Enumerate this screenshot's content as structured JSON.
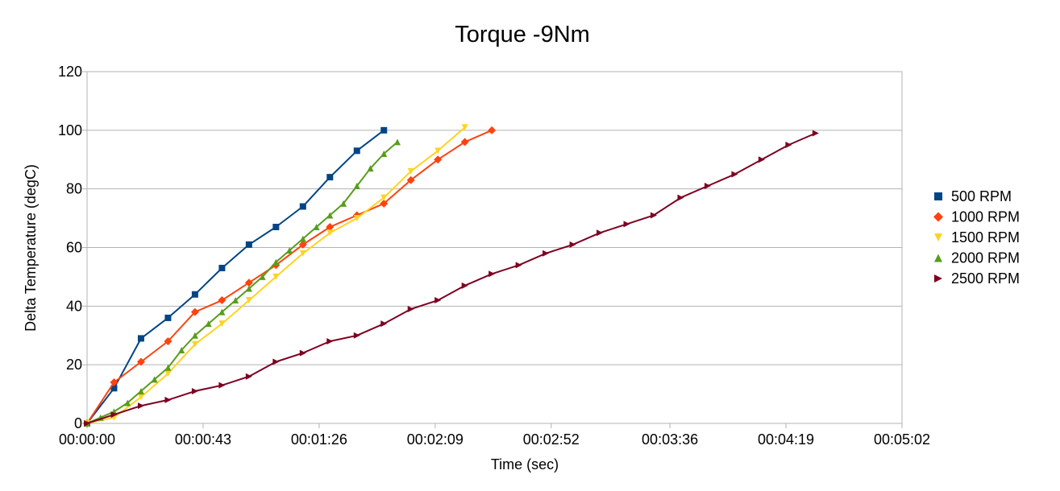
{
  "chart_data": {
    "type": "line",
    "title": "Torque -9Nm",
    "xlabel": "Time (sec)",
    "ylabel": "Delta Temperature (degC)",
    "xlim": [
      0,
      302
    ],
    "ylim": [
      0,
      120
    ],
    "x_ticks": [
      {
        "value": 0,
        "label": "00:00:00"
      },
      {
        "value": 43,
        "label": "00:00:43"
      },
      {
        "value": 86,
        "label": "00:01:26"
      },
      {
        "value": 129,
        "label": "00:02:09"
      },
      {
        "value": 172,
        "label": "00:02:52"
      },
      {
        "value": 216,
        "label": "00:03:36"
      },
      {
        "value": 259,
        "label": "00:04:19"
      },
      {
        "value": 302,
        "label": "00:05:02"
      }
    ],
    "y_ticks": [
      0,
      20,
      40,
      60,
      80,
      100,
      120
    ],
    "grid": true,
    "legend_position": "right",
    "series": [
      {
        "name": "500 RPM",
        "color": "#004586",
        "marker": "square",
        "x": [
          0,
          10,
          20,
          30,
          40,
          50,
          60,
          70,
          80,
          90,
          100,
          110
        ],
        "y": [
          0,
          12,
          29,
          36,
          44,
          53,
          61,
          67,
          74,
          84,
          93,
          100
        ]
      },
      {
        "name": "1000 RPM",
        "color": "#ff420e",
        "marker": "diamond",
        "x": [
          0,
          10,
          20,
          30,
          40,
          50,
          60,
          70,
          80,
          90,
          100,
          110,
          120,
          130,
          140,
          150
        ],
        "y": [
          0,
          14,
          21,
          28,
          38,
          42,
          48,
          54,
          61,
          67,
          71,
          75,
          83,
          90,
          96,
          100
        ]
      },
      {
        "name": "1500 RPM",
        "color": "#ffd320",
        "marker": "triangle-down",
        "x": [
          0,
          10,
          20,
          30,
          40,
          50,
          60,
          70,
          80,
          90,
          100,
          110,
          120,
          130,
          140
        ],
        "y": [
          0,
          2,
          9,
          17,
          27,
          34,
          42,
          50,
          58,
          65,
          70,
          77,
          86,
          93,
          101
        ]
      },
      {
        "name": "2000 RPM",
        "color": "#579d1c",
        "marker": "triangle-up",
        "x": [
          0,
          5,
          10,
          15,
          20,
          25,
          30,
          35,
          40,
          45,
          50,
          55,
          60,
          65,
          70,
          75,
          80,
          85,
          90,
          95,
          100,
          105,
          110,
          115
        ],
        "y": [
          0,
          2,
          4,
          7,
          11,
          15,
          19,
          25,
          30,
          34,
          38,
          42,
          46,
          50,
          55,
          59,
          63,
          67,
          71,
          75,
          81,
          87,
          92,
          96
        ]
      },
      {
        "name": "2500 RPM",
        "color": "#7e0021",
        "marker": "triangle-right",
        "x": [
          0,
          10,
          20,
          30,
          40,
          50,
          60,
          70,
          80,
          90,
          100,
          110,
          120,
          130,
          140,
          150,
          160,
          170,
          180,
          190,
          200,
          210,
          220,
          230,
          240,
          250,
          260,
          270
        ],
        "y": [
          0,
          3,
          6,
          8,
          11,
          13,
          16,
          21,
          24,
          28,
          30,
          34,
          39,
          42,
          47,
          51,
          54,
          58,
          61,
          65,
          68,
          71,
          77,
          81,
          85,
          90,
          95,
          99
        ]
      }
    ]
  }
}
